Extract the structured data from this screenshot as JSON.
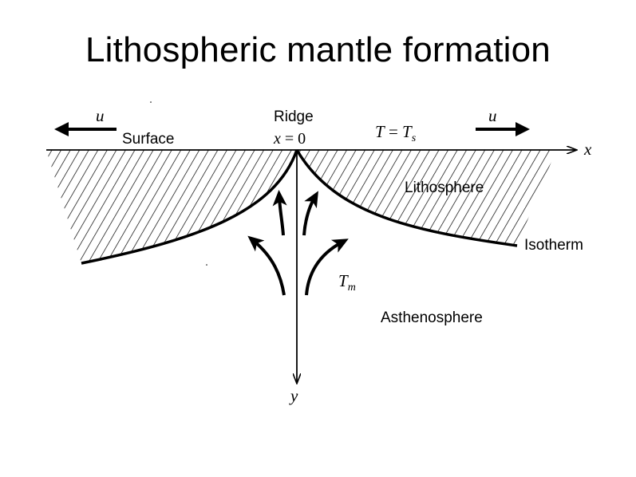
{
  "title": "Lithospheric mantle formation",
  "labels": {
    "u_left": "u",
    "u_right": "u",
    "surface": "Surface",
    "ridge": "Ridge",
    "ridge_position_var": "x",
    "ridge_position_eq": " = 0",
    "temp_var": "T",
    "temp_eq": " = ",
    "temp_surface_var": "T",
    "temp_surface_sub": "s",
    "x_axis": "x",
    "y_axis": "y",
    "lithosphere": "Lithosphere",
    "isotherm": "Isotherm",
    "mantle_temp_var": "T",
    "mantle_temp_sub": "m",
    "asthenosphere": "Asthenosphere"
  }
}
